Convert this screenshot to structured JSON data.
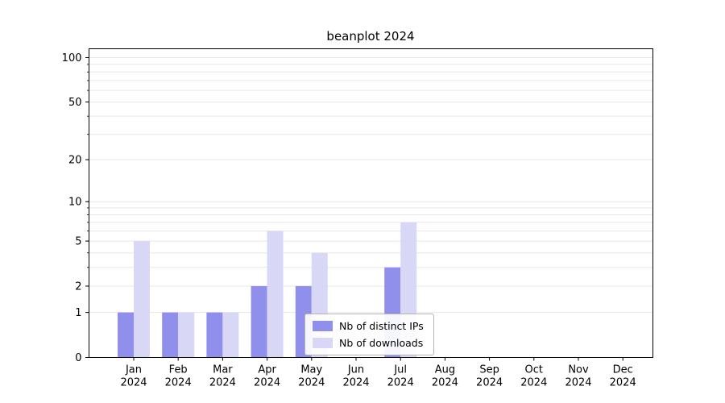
{
  "chart_data": {
    "type": "bar",
    "title": "beanplot 2024",
    "scale": "log1p",
    "grid": true,
    "legend_position": "lower-center-inside",
    "categories": [
      "Jan",
      "Feb",
      "Mar",
      "Apr",
      "May",
      "Jun",
      "Jul",
      "Aug",
      "Sep",
      "Oct",
      "Nov",
      "Dec"
    ],
    "year": "2024",
    "series": [
      {
        "name": "Nb of distinct IPs",
        "color": "#9090ec",
        "values": [
          1,
          1,
          1,
          2,
          2,
          0,
          3,
          0,
          0,
          0,
          0,
          0
        ]
      },
      {
        "name": "Nb of downloads",
        "color": "#d8d8f6",
        "values": [
          5,
          1,
          1,
          6,
          4,
          0,
          7,
          0,
          0,
          0,
          0,
          0
        ]
      }
    ],
    "yticks": [
      0,
      1,
      2,
      5,
      10,
      20,
      50,
      100
    ],
    "minor_grid": [
      1,
      2,
      3,
      4,
      5,
      6,
      7,
      8,
      9,
      10,
      20,
      30,
      40,
      50,
      60,
      70,
      80,
      90,
      100
    ],
    "ylim": [
      0,
      115
    ],
    "xlabel": "",
    "ylabel": ""
  }
}
